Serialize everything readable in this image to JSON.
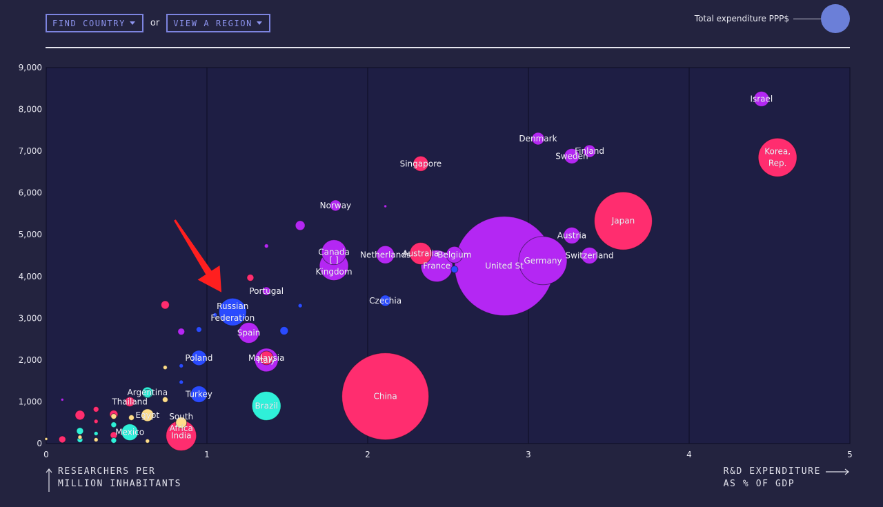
{
  "controls": {
    "find_country": "FIND COUNTRY",
    "or": "or",
    "view_region": "VIEW A REGION"
  },
  "size_legend": {
    "label": "Total expenditure PPP$"
  },
  "axis_titles": {
    "y_line1": "RESEARCHERS PER",
    "y_line2": "MILLION INHABITANTS",
    "x_line1": "R&D EXPENDITURE",
    "x_line2": "AS % OF GDP"
  },
  "colors": {
    "pink": "#ff2d6f",
    "purple": "#b427f3",
    "blue": "#2a4bff",
    "cyan": "#2ff0d9",
    "yellow": "#ffdd8a",
    "background": "#23233f",
    "plot": "#1e1e44",
    "arrow": "#ff1f1f"
  },
  "chart_data": {
    "type": "scatter",
    "title": "",
    "xlabel": "R&D EXPENDITURE AS % OF GDP",
    "ylabel": "RESEARCHERS PER MILLION INHABITANTS",
    "xlim": [
      0,
      5
    ],
    "ylim": [
      0,
      9000
    ],
    "x_ticks": [
      "0",
      "1",
      "2",
      "3",
      "4",
      "5"
    ],
    "y_ticks": [
      "0",
      "1,000",
      "2,000",
      "3,000",
      "4,000",
      "5,000",
      "6,000",
      "7,000",
      "8,000",
      "9,000"
    ],
    "grid": "vertical",
    "points": [
      {
        "label": "United States",
        "shown": "United St",
        "x": 2.85,
        "y": 4250,
        "size": 72,
        "color": "purple"
      },
      {
        "label": "China",
        "shown": "China",
        "x": 2.11,
        "y": 1130,
        "size": 63,
        "color": "pink"
      },
      {
        "label": "Japan",
        "shown": "Japan",
        "x": 3.59,
        "y": 5330,
        "size": 42,
        "color": "pink"
      },
      {
        "label": "Germany",
        "shown": "Germany",
        "x": 3.09,
        "y": 4380,
        "size": 35,
        "color": "purple"
      },
      {
        "label": "Korea, Rep.",
        "shown": "Korea,|Rep.",
        "x": 4.55,
        "y": 6850,
        "size": 28,
        "color": "pink"
      },
      {
        "label": "France",
        "shown": "France",
        "x": 2.43,
        "y": 4250,
        "size": 23,
        "color": "purple"
      },
      {
        "label": "India",
        "shown": "India",
        "x": 0.84,
        "y": 190,
        "size": 22,
        "color": "pink"
      },
      {
        "label": "Brazil",
        "shown": "Brazil",
        "x": 1.37,
        "y": 900,
        "size": 21,
        "color": "cyan"
      },
      {
        "label": "United Kingdom",
        "shown": "[    ]|Kingdom",
        "x": 1.79,
        "y": 4250,
        "size": 21,
        "color": "purple"
      },
      {
        "label": "Russian Federation",
        "shown": "Russian|Federation",
        "x": 1.16,
        "y": 3150,
        "size": 20,
        "color": "blue"
      },
      {
        "label": "Canada",
        "shown": "Canada",
        "x": 1.79,
        "y": 4580,
        "size": 18,
        "color": "purple"
      },
      {
        "label": "Italy",
        "shown": "Italy",
        "x": 1.37,
        "y": 2000,
        "size": 17,
        "color": "purple"
      },
      {
        "label": "Spain",
        "shown": "Spain",
        "x": 1.26,
        "y": 2650,
        "size": 15,
        "color": "purple"
      },
      {
        "label": "Australia",
        "shown": "Australia",
        "x": 2.33,
        "y": 4550,
        "size": 16,
        "color": "pink"
      },
      {
        "label": "Netherlands",
        "shown": "Netherlands",
        "x": 2.11,
        "y": 4520,
        "size": 13,
        "color": "purple"
      },
      {
        "label": "Belgium",
        "shown": "Belgium",
        "x": 2.54,
        "y": 4520,
        "size": 12,
        "color": "purple"
      },
      {
        "label": "Switzerland",
        "shown": "Switzerland",
        "x": 3.38,
        "y": 4500,
        "size": 12,
        "color": "purple"
      },
      {
        "label": "Austria",
        "shown": "Austria",
        "x": 3.27,
        "y": 4980,
        "size": 12,
        "color": "purple"
      },
      {
        "label": "Sweden",
        "shown": "Sweden",
        "x": 3.27,
        "y": 6880,
        "size": 11,
        "color": "purple"
      },
      {
        "label": "Israel",
        "shown": "Israel",
        "x": 4.45,
        "y": 8250,
        "size": 11,
        "color": "purple"
      },
      {
        "label": "Malaysia",
        "shown": "Malaysia",
        "x": 1.37,
        "y": 2050,
        "size": 10,
        "color": "pink"
      },
      {
        "label": "Turkey",
        "shown": "Turkey",
        "x": 0.95,
        "y": 1180,
        "size": 12,
        "color": "blue"
      },
      {
        "label": "Poland",
        "shown": "Poland",
        "x": 0.95,
        "y": 2050,
        "size": 11,
        "color": "blue"
      },
      {
        "label": "Mexico",
        "shown": "Mexico",
        "x": 0.52,
        "y": 270,
        "size": 12,
        "color": "cyan"
      },
      {
        "label": "Singapore",
        "shown": "Singapore",
        "x": 2.33,
        "y": 6700,
        "size": 11,
        "color": "pink"
      },
      {
        "label": "Czechia",
        "shown": "Czechia",
        "x": 2.11,
        "y": 3420,
        "size": 8,
        "color": "blue"
      },
      {
        "label": "Finland",
        "shown": "Finland",
        "x": 3.38,
        "y": 7000,
        "size": 9,
        "color": "purple"
      },
      {
        "label": "Denmark",
        "shown": "Denmark",
        "x": 3.06,
        "y": 7300,
        "size": 9,
        "color": "purple"
      },
      {
        "label": "Norway",
        "shown": "Norway",
        "x": 1.8,
        "y": 5700,
        "size": 8,
        "color": "purple"
      },
      {
        "label": "Portugal",
        "shown": "Portugal",
        "x": 1.37,
        "y": 3650,
        "size": 6,
        "color": "purple"
      },
      {
        "label": "South Africa",
        "shown": "South|Africa",
        "x": 0.84,
        "y": 500,
        "size": 8,
        "color": "yellow"
      },
      {
        "label": "Egypt",
        "shown": "Egypt",
        "x": 0.63,
        "y": 680,
        "size": 9,
        "color": "yellow"
      },
      {
        "label": "Argentina",
        "shown": "Argentina",
        "x": 0.63,
        "y": 1220,
        "size": 8,
        "color": "cyan"
      },
      {
        "label": "Thailand",
        "shown": "Thailand",
        "x": 0.52,
        "y": 1000,
        "size": 7,
        "color": "pink"
      },
      {
        "label": "",
        "shown": "",
        "x": 1.58,
        "y": 5220,
        "size": 7,
        "color": "purple"
      },
      {
        "label": "",
        "shown": "",
        "x": 0.74,
        "y": 3320,
        "size": 6,
        "color": "pink"
      },
      {
        "label": "",
        "shown": "",
        "x": 1.27,
        "y": 3970,
        "size": 5,
        "color": "pink"
      },
      {
        "label": "",
        "shown": "",
        "x": 1.48,
        "y": 2700,
        "size": 6,
        "color": "blue"
      },
      {
        "label": "",
        "shown": "",
        "x": 0.84,
        "y": 2680,
        "size": 5,
        "color": "purple"
      },
      {
        "label": "",
        "shown": "",
        "x": 0.95,
        "y": 2730,
        "size": 4,
        "color": "blue"
      },
      {
        "label": "",
        "shown": "",
        "x": 2.54,
        "y": 4170,
        "size": 5,
        "color": "blue"
      },
      {
        "label": "",
        "shown": "",
        "x": 1.37,
        "y": 4730,
        "size": 3,
        "color": "purple"
      },
      {
        "label": "",
        "shown": "",
        "x": 2.11,
        "y": 5680,
        "size": 2,
        "color": "purple"
      },
      {
        "label": "",
        "shown": "",
        "x": 1.58,
        "y": 3300,
        "size": 3,
        "color": "blue"
      },
      {
        "label": "",
        "shown": "",
        "x": 1.05,
        "y": 3080,
        "size": 3,
        "color": "blue"
      },
      {
        "label": "",
        "shown": "",
        "x": 0.84,
        "y": 1860,
        "size": 3,
        "color": "blue"
      },
      {
        "label": "",
        "shown": "",
        "x": 0.84,
        "y": 1470,
        "size": 3,
        "color": "blue"
      },
      {
        "label": "",
        "shown": "",
        "x": 0.74,
        "y": 1820,
        "size": 3,
        "color": "yellow"
      },
      {
        "label": "",
        "shown": "",
        "x": 0.74,
        "y": 1050,
        "size": 4,
        "color": "yellow"
      },
      {
        "label": "",
        "shown": "",
        "x": 0.42,
        "y": 700,
        "size": 6,
        "color": "pink"
      },
      {
        "label": "",
        "shown": "",
        "x": 0.42,
        "y": 200,
        "size": 5,
        "color": "pink"
      },
      {
        "label": "",
        "shown": "",
        "x": 0.42,
        "y": 75,
        "size": 4,
        "color": "cyan"
      },
      {
        "label": "",
        "shown": "",
        "x": 0.31,
        "y": 820,
        "size": 4,
        "color": "pink"
      },
      {
        "label": "",
        "shown": "",
        "x": 0.31,
        "y": 530,
        "size": 3,
        "color": "pink"
      },
      {
        "label": "",
        "shown": "",
        "x": 0.31,
        "y": 240,
        "size": 3,
        "color": "cyan"
      },
      {
        "label": "",
        "shown": "",
        "x": 0.21,
        "y": 680,
        "size": 7,
        "color": "pink"
      },
      {
        "label": "",
        "shown": "",
        "x": 0.21,
        "y": 300,
        "size": 5,
        "color": "cyan"
      },
      {
        "label": "",
        "shown": "",
        "x": 0.1,
        "y": 100,
        "size": 5,
        "color": "pink"
      },
      {
        "label": "",
        "shown": "",
        "x": 0.21,
        "y": 90,
        "size": 4,
        "color": "cyan"
      },
      {
        "label": "",
        "shown": "",
        "x": 0.31,
        "y": 90,
        "size": 3,
        "color": "yellow"
      },
      {
        "label": "",
        "shown": "",
        "x": 0.53,
        "y": 620,
        "size": 4,
        "color": "yellow"
      },
      {
        "label": "",
        "shown": "",
        "x": 0.63,
        "y": 60,
        "size": 3,
        "color": "yellow"
      },
      {
        "label": "",
        "shown": "",
        "x": 0.42,
        "y": 650,
        "size": 4,
        "color": "yellow"
      },
      {
        "label": "",
        "shown": "",
        "x": 0.42,
        "y": 450,
        "size": 4,
        "color": "cyan"
      },
      {
        "label": "",
        "shown": "",
        "x": 0.1,
        "y": 1050,
        "size": 2,
        "color": "purple"
      },
      {
        "label": "",
        "shown": "",
        "x": 0.21,
        "y": 150,
        "size": 3,
        "color": "yellow"
      },
      {
        "label": "",
        "shown": "",
        "x": 0.0,
        "y": 110,
        "size": 2,
        "color": "yellow"
      },
      {
        "label": "",
        "shown": "",
        "x": 0.63,
        "y": 1200,
        "size": 6,
        "color": "cyan"
      }
    ],
    "annotation": {
      "type": "arrow",
      "from": {
        "x": 0.8,
        "y": 5350
      },
      "to": {
        "x": 1.09,
        "y": 3620
      }
    }
  }
}
